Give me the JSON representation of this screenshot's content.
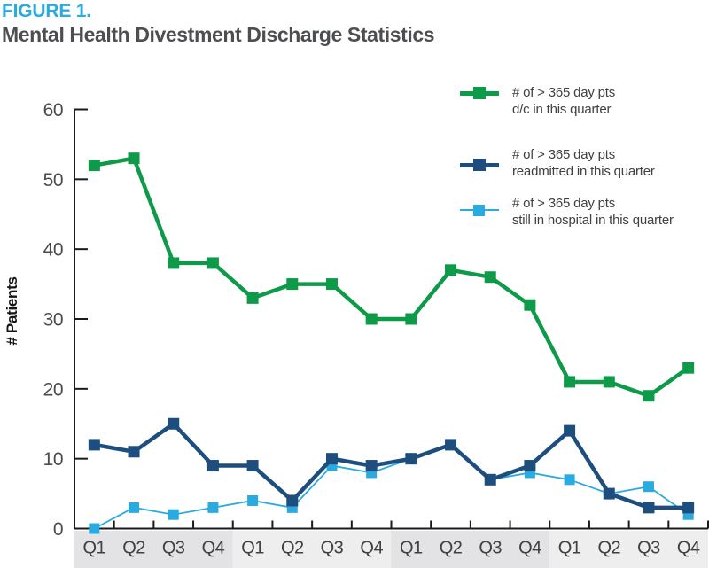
{
  "header": {
    "figure_label": "FIGURE 1.",
    "title": "Mental Health Divestment Discharge Statistics"
  },
  "colors": {
    "figure_label": "#29abe2",
    "title": "#4d4e50",
    "axis": "#1b1b1d",
    "y_tick_label": "#4b4b4d",
    "x_tick_label": "#3f4042",
    "legend_text": "#3f4042",
    "ylabel_text": "#161618",
    "band_dark": "#e3e3e5",
    "band_light": "#eeeeef",
    "background": "#ffffff"
  },
  "chart_data": {
    "type": "line",
    "title": "Mental Health Divestment Discharge Statistics",
    "xlabel": "",
    "ylabel": "# Patients",
    "ylim": [
      0,
      60
    ],
    "yticks": [
      0,
      10,
      20,
      30,
      40,
      50,
      60
    ],
    "grid": false,
    "legend_position": "top-right",
    "x_band_groups": 4,
    "categories": [
      "Q1",
      "Q2",
      "Q3",
      "Q4",
      "Q1",
      "Q2",
      "Q3",
      "Q4",
      "Q1",
      "Q2",
      "Q3",
      "Q4",
      "Q1",
      "Q2",
      "Q3",
      "Q4"
    ],
    "series": [
      {
        "name": "# of > 365 day pts d/c in this quarter",
        "label_lines": [
          "# of > 365 day pts",
          "d/c in this quarter"
        ],
        "color": "#0d9a49",
        "values": [
          52,
          53,
          38,
          38,
          33,
          35,
          35,
          30,
          30,
          37,
          36,
          32,
          21,
          21,
          19,
          23
        ]
      },
      {
        "name": "# of > 365 day pts readmitted in this quarter",
        "label_lines": [
          "# of > 365 day pts",
          "readmitted in this quarter"
        ],
        "color": "#1d4e7e",
        "values": [
          12,
          11,
          15,
          9,
          9,
          4,
          10,
          9,
          10,
          12,
          7,
          9,
          14,
          5,
          3,
          3
        ]
      },
      {
        "name": "# of > 365 day pts still in hospital in this quarter",
        "label_lines": [
          "# of > 365 day pts",
          "still in hospital in this quarter"
        ],
        "color": "#29abe2",
        "values": [
          0,
          3,
          2,
          3,
          4,
          3,
          9,
          8,
          10,
          12,
          7,
          8,
          7,
          5,
          6,
          2
        ]
      }
    ]
  }
}
